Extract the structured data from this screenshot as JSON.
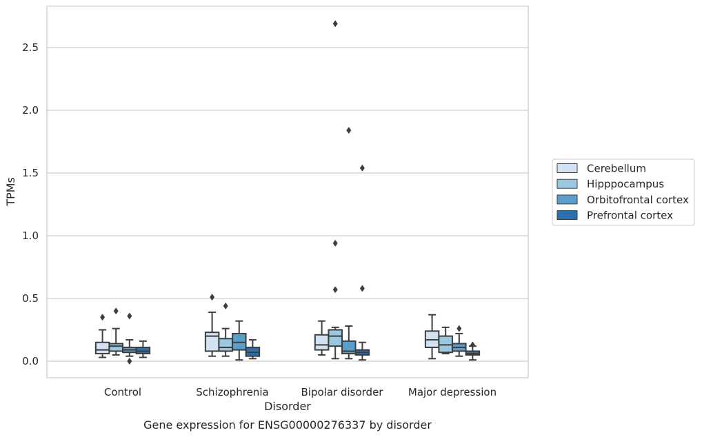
{
  "chart_data": {
    "type": "box",
    "title": "",
    "caption": "Gene expression for ENSG00000276337 by disorder",
    "xlabel": "Disorder",
    "ylabel": "TPMs",
    "ylim": [
      -0.13,
      2.83
    ],
    "yticks": [
      0.0,
      0.5,
      1.0,
      1.5,
      2.0,
      2.5
    ],
    "ytick_labels": [
      "0.0",
      "0.5",
      "1.0",
      "1.5",
      "2.0",
      "2.5"
    ],
    "grid": "horizontal",
    "legend_position": "right",
    "categories": [
      "Control",
      "Schizophrenia",
      "Bipolar disorder",
      "Major depression"
    ],
    "series": [
      {
        "name": "Cerebellum",
        "color": "#d1e2f2",
        "boxes": [
          {
            "whisker_low": 0.03,
            "q1": 0.06,
            "median": 0.09,
            "q3": 0.15,
            "whisker_high": 0.25,
            "outliers": [
              0.35
            ]
          },
          {
            "whisker_low": 0.04,
            "q1": 0.08,
            "median": 0.2,
            "q3": 0.23,
            "whisker_high": 0.39,
            "outliers": [
              0.51
            ]
          },
          {
            "whisker_low": 0.05,
            "q1": 0.09,
            "median": 0.13,
            "q3": 0.21,
            "whisker_high": 0.32,
            "outliers": []
          },
          {
            "whisker_low": 0.02,
            "q1": 0.11,
            "median": 0.17,
            "q3": 0.24,
            "whisker_high": 0.37,
            "outliers": []
          }
        ]
      },
      {
        "name": "Hipppocampus",
        "color": "#9ac8e0",
        "boxes": [
          {
            "whisker_low": 0.05,
            "q1": 0.08,
            "median": 0.12,
            "q3": 0.14,
            "whisker_high": 0.26,
            "outliers": [
              0.4
            ]
          },
          {
            "whisker_low": 0.04,
            "q1": 0.08,
            "median": 0.11,
            "q3": 0.18,
            "whisker_high": 0.26,
            "outliers": [
              0.44
            ]
          },
          {
            "whisker_low": 0.02,
            "q1": 0.12,
            "median": 0.2,
            "q3": 0.25,
            "whisker_high": 0.27,
            "outliers": [
              2.69,
              0.94,
              0.57
            ]
          },
          {
            "whisker_low": 0.06,
            "q1": 0.07,
            "median": 0.13,
            "q3": 0.2,
            "whisker_high": 0.27,
            "outliers": []
          }
        ]
      },
      {
        "name": "Orbitofrontal cortex",
        "color": "#5a9ecb",
        "boxes": [
          {
            "whisker_low": 0.04,
            "q1": 0.07,
            "median": 0.09,
            "q3": 0.11,
            "whisker_high": 0.17,
            "outliers": [
              0.36,
              0.0
            ]
          },
          {
            "whisker_low": 0.01,
            "q1": 0.09,
            "median": 0.15,
            "q3": 0.22,
            "whisker_high": 0.32,
            "outliers": []
          },
          {
            "whisker_low": 0.02,
            "q1": 0.06,
            "median": 0.08,
            "q3": 0.16,
            "whisker_high": 0.28,
            "outliers": [
              1.84
            ]
          },
          {
            "whisker_low": 0.04,
            "q1": 0.08,
            "median": 0.11,
            "q3": 0.14,
            "whisker_high": 0.22,
            "outliers": [
              0.26
            ]
          }
        ]
      },
      {
        "name": "Prefrontal cortex",
        "color": "#2a6fae",
        "boxes": [
          {
            "whisker_low": 0.03,
            "q1": 0.06,
            "median": 0.08,
            "q3": 0.11,
            "whisker_high": 0.16,
            "outliers": []
          },
          {
            "whisker_low": 0.02,
            "q1": 0.04,
            "median": 0.07,
            "q3": 0.11,
            "whisker_high": 0.17,
            "outliers": []
          },
          {
            "whisker_low": 0.01,
            "q1": 0.05,
            "median": 0.07,
            "q3": 0.09,
            "whisker_high": 0.15,
            "outliers": [
              1.54,
              0.58
            ]
          },
          {
            "whisker_low": 0.01,
            "q1": 0.05,
            "median": 0.06,
            "q3": 0.08,
            "whisker_high": 0.12,
            "outliers": [
              0.13
            ]
          }
        ]
      }
    ]
  }
}
